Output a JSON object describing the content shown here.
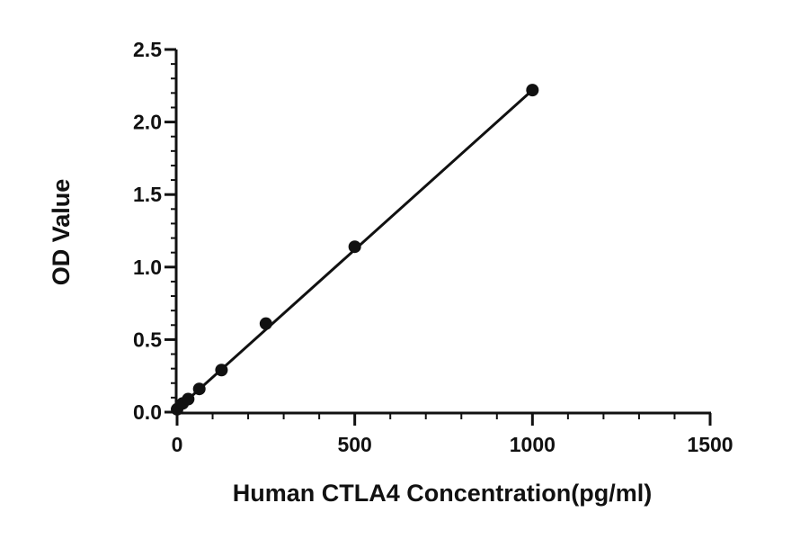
{
  "chart_data": {
    "type": "scatter",
    "title": "",
    "xlabel": "Human CTLA4 Concentration(pg/ml)",
    "ylabel": "OD Value",
    "xlim": [
      0,
      1500
    ],
    "ylim": [
      0,
      2.5
    ],
    "x_ticks": [
      0,
      500,
      1000,
      1500
    ],
    "x_tick_labels": [
      "0",
      "500",
      "1000",
      "1500"
    ],
    "y_ticks": [
      0,
      0.5,
      1,
      1.5,
      2,
      2.5
    ],
    "y_tick_labels": [
      "0.0",
      "0.5",
      "1.0",
      "1.5",
      "2.0",
      "2.5"
    ],
    "x_minor_tick_step": 100,
    "y_minor_tick_step": 0.1,
    "grid": false,
    "series": [
      {
        "points": [
          {
            "x": 0,
            "y": 0.02
          },
          {
            "x": 15.6,
            "y": 0.06
          },
          {
            "x": 31.25,
            "y": 0.09
          },
          {
            "x": 62.5,
            "y": 0.16
          },
          {
            "x": 125,
            "y": 0.29
          },
          {
            "x": 250,
            "y": 0.61
          },
          {
            "x": 500,
            "y": 1.14
          },
          {
            "x": 1000,
            "y": 2.22
          }
        ],
        "fit_line": {
          "x_start": 0,
          "y_start": 0.02,
          "x_end": 1000,
          "y_end": 2.22
        },
        "color": "#111111"
      }
    ]
  }
}
